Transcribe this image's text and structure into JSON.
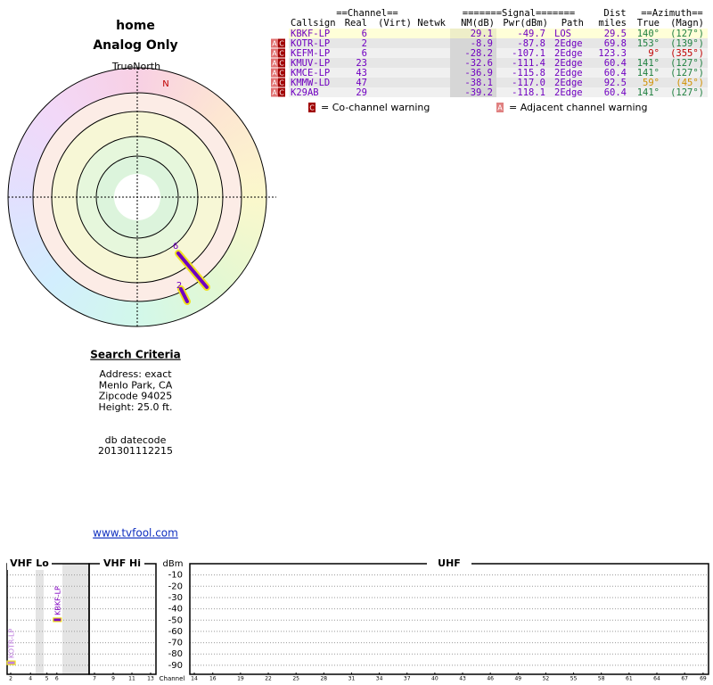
{
  "header": {
    "title": "home",
    "subtitle": "Analog Only"
  },
  "table": {
    "group_headers": [
      "==Channel==",
      "=======Signal=======",
      "Dist",
      "==Azimuth=="
    ],
    "columns": [
      "Callsign",
      "Real",
      "(Virt)",
      "Netwk",
      "NM(dB)",
      "Pwr(dBm)",
      "Path",
      "miles",
      "True",
      "(Magn)"
    ],
    "rows": [
      {
        "callsign": "KBKF-LP",
        "real": "6",
        "nm": "29.1",
        "pwr": "-49.7",
        "path": "LOS",
        "dist": "29.5",
        "true_az": "140°",
        "magn_az": "(127°)",
        "az_color": "#208040"
      },
      {
        "flags": [
          "A",
          "C"
        ],
        "callsign": "KOTR-LP",
        "real": "2",
        "nm": "-8.9",
        "pwr": "-87.8",
        "path": "2Edge",
        "dist": "69.8",
        "true_az": "153°",
        "magn_az": "(139°)",
        "az_color": "#208040"
      },
      {
        "flags": [
          "A",
          "C"
        ],
        "callsign": "KEFM-LP",
        "real": "6",
        "nm": "-28.2",
        "pwr": "-107.1",
        "path": "2Edge",
        "dist": "123.3",
        "true_az": "9°",
        "magn_az": "(355°)",
        "az_color": "#c00000"
      },
      {
        "flags": [
          "A",
          "C"
        ],
        "callsign": "KMUV-LP",
        "real": "23",
        "nm": "-32.6",
        "pwr": "-111.4",
        "path": "2Edge",
        "dist": "60.4",
        "true_az": "141°",
        "magn_az": "(127°)",
        "az_color": "#208040"
      },
      {
        "flags": [
          "A",
          "C"
        ],
        "callsign": "KMCE-LP",
        "real": "43",
        "nm": "-36.9",
        "pwr": "-115.8",
        "path": "2Edge",
        "dist": "60.4",
        "true_az": "141°",
        "magn_az": "(127°)",
        "az_color": "#208040"
      },
      {
        "flags": [
          "A",
          "C"
        ],
        "callsign": "KMMW-LD",
        "real": "47",
        "nm": "-38.1",
        "pwr": "-117.0",
        "path": "2Edge",
        "dist": "92.5",
        "true_az": "59°",
        "magn_az": "(45°)",
        "az_color": "#d09000"
      },
      {
        "flags": [
          "A",
          "C"
        ],
        "callsign": "K29AB",
        "real": "29",
        "nm": "-39.2",
        "pwr": "-118.1",
        "path": "2Edge",
        "dist": "60.4",
        "true_az": "141°",
        "magn_az": "(127°)",
        "az_color": "#208040"
      }
    ]
  },
  "legend": [
    {
      "key": "C",
      "text": "= Co-channel warning"
    },
    {
      "key": "A",
      "text": "= Adjacent channel warning"
    }
  ],
  "radar": {
    "north_label": "TrueNorth",
    "n": "N",
    "markers": [
      "6",
      "2"
    ]
  },
  "criteria": {
    "title": "Search Criteria",
    "lines": [
      "Address: exact",
      "Menlo Park, CA",
      "Zipcode 94025",
      "Height: 25.0 ft."
    ],
    "datecode_label": "db datecode",
    "datecode": "201301112215"
  },
  "link": "www.tvfool.com",
  "chart_data": {
    "type": "scatter",
    "bands": [
      "VHF Lo",
      "VHF Hi",
      "UHF"
    ],
    "y_label": "dBm",
    "x_label": "Channel",
    "ylim": [
      -98,
      0
    ],
    "yticks": [
      -10,
      -20,
      -30,
      -40,
      -50,
      -60,
      -70,
      -80,
      -90
    ],
    "xticks": [
      2,
      4,
      5,
      6,
      7,
      9,
      11,
      13,
      14,
      16,
      19,
      22,
      25,
      28,
      31,
      34,
      37,
      40,
      43,
      46,
      49,
      52,
      55,
      58,
      61,
      64,
      67,
      69
    ],
    "series": [
      {
        "name": "KOTR-LP",
        "color": "#c080e0",
        "x": [
          2
        ],
        "values": [
          -87.8
        ]
      },
      {
        "name": "KBKF-LP",
        "color": "#8000c0",
        "x": [
          6
        ],
        "values": [
          -49.7
        ]
      }
    ]
  }
}
